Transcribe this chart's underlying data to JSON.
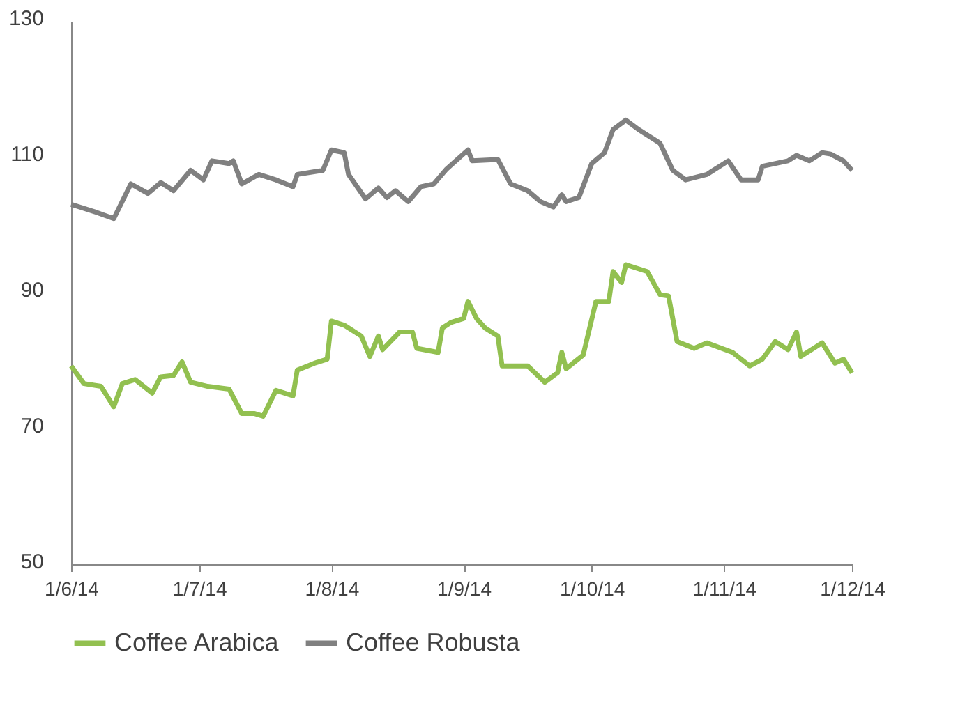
{
  "chart_data": {
    "type": "line",
    "xlim": [
      "2014-06-01",
      "2014-12-01"
    ],
    "xticks": [
      {
        "value": "2014-06-01",
        "label": "1/6/14"
      },
      {
        "value": "2014-07-01",
        "label": "1/7/14"
      },
      {
        "value": "2014-08-01",
        "label": "1/8/14"
      },
      {
        "value": "2014-09-01",
        "label": "1/9/14"
      },
      {
        "value": "2014-10-01",
        "label": "1/10/14"
      },
      {
        "value": "2014-11-01",
        "label": "1/11/14"
      },
      {
        "value": "2014-12-01",
        "label": "1/12/14"
      }
    ],
    "ylim": [
      50,
      130
    ],
    "yticks": [
      50,
      70,
      90,
      110,
      130
    ],
    "grid": false,
    "legend": "bottom",
    "marker": "none",
    "line_style": "solid",
    "series": [
      {
        "name": "Coffee Arabica",
        "color": "#92c050",
        "x": [
          "2014-06-01",
          "2014-06-04",
          "2014-06-08",
          "2014-06-11",
          "2014-06-13",
          "2014-06-16",
          "2014-06-20",
          "2014-06-22",
          "2014-06-25",
          "2014-06-27",
          "2014-06-29",
          "2014-07-03",
          "2014-07-08",
          "2014-07-11",
          "2014-07-14",
          "2014-07-16",
          "2014-07-19",
          "2014-07-23",
          "2014-07-24",
          "2014-07-28",
          "2014-07-31",
          "2014-08-01",
          "2014-08-04",
          "2014-08-08",
          "2014-08-10",
          "2014-08-12",
          "2014-08-13",
          "2014-08-17",
          "2014-08-20",
          "2014-08-21",
          "2014-08-26",
          "2014-08-27",
          "2014-08-29",
          "2014-09-01",
          "2014-09-02",
          "2014-09-04",
          "2014-09-06",
          "2014-09-09",
          "2014-09-10",
          "2014-09-16",
          "2014-09-20",
          "2014-09-23",
          "2014-09-24",
          "2014-09-25",
          "2014-09-29",
          "2014-10-02",
          "2014-10-05",
          "2014-10-06",
          "2014-10-08",
          "2014-10-09",
          "2014-10-14",
          "2014-10-17",
          "2014-10-19",
          "2014-10-21",
          "2014-10-25",
          "2014-10-28",
          "2014-11-03",
          "2014-11-07",
          "2014-11-10",
          "2014-11-13",
          "2014-11-16",
          "2014-11-18",
          "2014-11-19",
          "2014-11-24",
          "2014-11-27",
          "2014-11-29",
          "2014-12-01"
        ],
        "values": [
          79.2,
          76.6,
          76.2,
          73.2,
          76.6,
          77.2,
          75.2,
          77.6,
          77.8,
          79.8,
          76.8,
          76.2,
          75.8,
          72.2,
          72.2,
          71.8,
          75.6,
          74.8,
          78.6,
          79.6,
          80.2,
          85.8,
          85.2,
          83.6,
          80.6,
          83.6,
          81.6,
          84.2,
          84.2,
          81.8,
          81.2,
          84.8,
          85.6,
          86.2,
          88.7,
          86.2,
          84.8,
          83.6,
          79.2,
          79.2,
          76.8,
          78.2,
          81.2,
          78.8,
          80.8,
          88.7,
          88.7,
          93.1,
          91.5,
          94.1,
          93.1,
          89.7,
          89.5,
          82.8,
          81.8,
          82.6,
          81.2,
          79.2,
          80.2,
          82.8,
          81.6,
          84.2,
          80.6,
          82.6,
          79.6,
          80.2,
          78.2
        ]
      },
      {
        "name": "Coffee Robusta",
        "color": "#808080",
        "x": [
          "2014-06-01",
          "2014-06-07",
          "2014-06-11",
          "2014-06-15",
          "2014-06-19",
          "2014-06-22",
          "2014-06-25",
          "2014-06-29",
          "2014-07-02",
          "2014-07-04",
          "2014-07-08",
          "2014-07-09",
          "2014-07-11",
          "2014-07-15",
          "2014-07-19",
          "2014-07-23",
          "2014-07-24",
          "2014-07-30",
          "2014-08-01",
          "2014-08-04",
          "2014-08-05",
          "2014-08-09",
          "2014-08-12",
          "2014-08-14",
          "2014-08-16",
          "2014-08-19",
          "2014-08-22",
          "2014-08-25",
          "2014-08-28",
          "2014-09-02",
          "2014-09-03",
          "2014-09-09",
          "2014-09-12",
          "2014-09-16",
          "2014-09-19",
          "2014-09-22",
          "2014-09-24",
          "2014-09-25",
          "2014-09-28",
          "2014-10-01",
          "2014-10-04",
          "2014-10-06",
          "2014-10-09",
          "2014-10-12",
          "2014-10-17",
          "2014-10-20",
          "2014-10-23",
          "2014-10-28",
          "2014-11-02",
          "2014-11-05",
          "2014-11-09",
          "2014-11-10",
          "2014-11-16",
          "2014-11-18",
          "2014-11-21",
          "2014-11-24",
          "2014-11-26",
          "2014-11-29",
          "2014-12-01"
        ],
        "values": [
          103.0,
          101.8,
          100.9,
          106,
          104.6,
          106.2,
          105,
          108,
          106.6,
          109.4,
          109,
          109.4,
          106,
          107.4,
          106.6,
          105.6,
          107.4,
          108,
          111,
          110.6,
          107.4,
          103.8,
          105.4,
          104,
          105,
          103.4,
          105.6,
          106,
          108.2,
          111,
          109.4,
          109.6,
          106,
          105,
          103.4,
          102.6,
          104.4,
          103.4,
          104,
          109,
          110.6,
          114,
          115.4,
          114,
          112,
          108,
          106.6,
          107.4,
          109.4,
          106.6,
          106.6,
          108.6,
          109.4,
          110.2,
          109.4,
          110.6,
          110.4,
          109.4,
          108
        ]
      }
    ]
  }
}
